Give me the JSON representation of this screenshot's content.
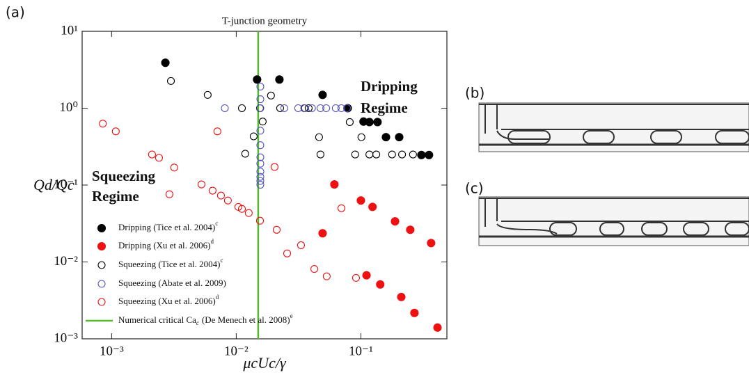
{
  "panels": [
    "(a)",
    "(b)",
    "(c)"
  ],
  "chart_data": {
    "type": "scatter",
    "title": "T-junction geometry",
    "xlabel": "μcUc/γ",
    "ylabel": "Qd/Qc",
    "xscale": "log",
    "yscale": "log",
    "xlim": [
      0.00058,
      0.49
    ],
    "ylim": [
      0.001,
      10
    ],
    "xticks": [
      {
        "value": 0.001,
        "label": "10⁻³"
      },
      {
        "value": 0.01,
        "label": "10⁻²"
      },
      {
        "value": 0.1,
        "label": "10⁻¹"
      }
    ],
    "yticks": [
      {
        "value": 10,
        "label": "10¹"
      },
      {
        "value": 1,
        "label": "10⁰"
      },
      {
        "value": 0.1,
        "label": "10⁻¹"
      },
      {
        "value": 0.01,
        "label": "10⁻²"
      },
      {
        "value": 0.001,
        "label": "10⁻³"
      }
    ],
    "annotations": [
      "Dripping",
      "Regime",
      "Squeezing",
      "Regime"
    ],
    "legend": "lower left",
    "series": [
      {
        "name": "Dripping (Tice et al. 2004)",
        "superscript": "c",
        "color": "#000000",
        "filled": true,
        "x": [
          0.0027,
          0.0147,
          0.0222,
          0.0493,
          0.0784,
          0.105,
          0.117,
          0.136,
          0.159,
          0.203,
          0.306,
          0.352
        ],
        "values": [
          3.9,
          2.36,
          2.36,
          1.49,
          1.0,
          0.67,
          0.66,
          0.66,
          0.42,
          0.42,
          0.246,
          0.246
        ]
      },
      {
        "name": "Dripping (Xu et al. 2006)",
        "superscript": "d",
        "color": "#ee1111",
        "filled": true,
        "x": [
          0.0613,
          0.0493,
          0.1,
          0.124,
          0.188,
          0.249,
          0.366,
          0.111,
          0.143,
          0.211,
          0.269,
          0.412
        ],
        "values": [
          0.102,
          0.0236,
          0.063,
          0.052,
          0.0337,
          0.0262,
          0.0176,
          0.0067,
          0.0051,
          0.0035,
          0.00217,
          0.0014
        ]
      },
      {
        "name": "Squeezing (Tice et al. 2004)",
        "superscript": "c",
        "color": "#000000",
        "filled": false,
        "x": [
          0.00299,
          0.0059,
          0.0111,
          0.0138,
          0.0118,
          0.0163,
          0.019,
          0.0225,
          0.0352,
          0.0381,
          0.0462,
          0.0474,
          0.0814,
          0.101,
          0.09,
          0.117,
          0.133,
          0.178,
          0.214,
          0.262,
          0.0155
        ],
        "values": [
          2.26,
          1.49,
          1.0,
          0.43,
          0.256,
          0.67,
          1.46,
          1.0,
          1.0,
          1.0,
          0.42,
          0.25,
          0.66,
          0.42,
          0.25,
          0.25,
          0.25,
          0.25,
          0.25,
          0.25,
          1.0
        ]
      },
      {
        "name": "Squeezing (Abate et al. 2009)",
        "color": "#5555bb",
        "filled": false,
        "x": [
          0.0081,
          0.0243,
          0.0314,
          0.0357,
          0.0405,
          0.0474,
          0.0527,
          0.0629,
          0.0697,
          0.0774,
          0.0156,
          0.0156,
          0.0156,
          0.0156,
          0.0156,
          0.0156,
          0.0156,
          0.0156,
          0.0156,
          0.0156,
          0.0156
        ],
        "values": [
          1.0,
          1.0,
          1.0,
          1.0,
          1.0,
          1.0,
          1.0,
          1.0,
          1.0,
          1.0,
          1.91,
          1.31,
          1.0,
          0.51,
          0.33,
          0.23,
          0.19,
          0.15,
          0.128,
          0.113,
          0.101
        ]
      },
      {
        "name": "Squeezing (Xu et al. 2006)",
        "superscript": "d",
        "color": "#ee1111",
        "filled": false,
        "x": [
          0.00085,
          0.00108,
          0.00211,
          0.0024,
          0.00318,
          0.00291,
          0.00526,
          0.00646,
          0.00754,
          0.00857,
          0.0104,
          0.0111,
          0.0126,
          0.0155,
          0.00706,
          0.0203,
          0.0211,
          0.0256,
          0.0331,
          0.0423,
          0.0532,
          0.0698,
          0.0914
        ],
        "values": [
          0.63,
          0.5,
          0.25,
          0.226,
          0.169,
          0.076,
          0.102,
          0.0846,
          0.073,
          0.063,
          0.052,
          0.049,
          0.0433,
          0.0344,
          0.5,
          0.172,
          0.0262,
          0.0129,
          0.0165,
          0.0081,
          0.0065,
          0.05,
          0.0062
        ]
      }
    ],
    "critical_line": {
      "name": "Numerical critical Ca",
      "subscript": "c",
      "name_rest": "(De Menech et al. 2008)",
      "superscript": "e",
      "x": 0.015,
      "color": "#55b82d"
    }
  }
}
